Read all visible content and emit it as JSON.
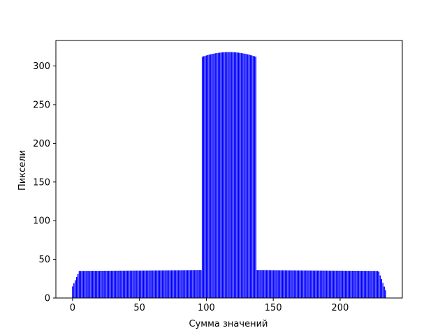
{
  "chart_data": {
    "type": "bar",
    "xlabel": "Сумма значений",
    "ylabel": "Пиксели",
    "xlim": [
      -12.5,
      246.5
    ],
    "ylim": [
      0,
      333
    ],
    "xticks": [
      0,
      50,
      100,
      150,
      200
    ],
    "yticks": [
      0,
      50,
      100,
      150,
      200,
      250,
      300
    ],
    "bar_color": "#0000ff",
    "grid": false,
    "segments": [
      {
        "x_start": 0,
        "x_end": 5,
        "y_start": 15,
        "y_end": 35,
        "note": "ramp up"
      },
      {
        "x_start": 5,
        "x_end": 96,
        "y_start": 35,
        "y_end": 36,
        "note": "low plateau"
      },
      {
        "x_start": 97,
        "x_end": 137,
        "y_start": 312,
        "y_end": 312,
        "peak_x": 117,
        "peak_y": 318,
        "note": "high plateau"
      },
      {
        "x_start": 138,
        "x_end": 228,
        "y_start": 36,
        "y_end": 35,
        "note": "low plateau"
      },
      {
        "x_start": 229,
        "x_end": 234,
        "y_start": 34,
        "y_end": 10,
        "note": "ramp down"
      }
    ]
  }
}
